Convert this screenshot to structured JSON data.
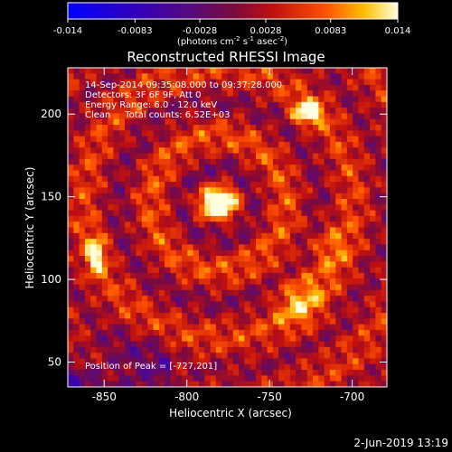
{
  "colorbar": {
    "tick_labels": [
      "-0.014",
      "-0.0083",
      "-0.0028",
      "0.0028",
      "0.0083",
      "0.014"
    ],
    "tick_values": [
      -0.014,
      -0.0083,
      -0.0028,
      0.0028,
      0.0083,
      0.014
    ],
    "range": [
      -0.014,
      0.014
    ],
    "unit_main": "(photons cm",
    "unit_sup1": "-2",
    "unit_mid": " s",
    "unit_sup2": "-1",
    "unit_end": " asec",
    "unit_sup3": "-2",
    "unit_close": ")"
  },
  "info": {
    "line1": "14-Sep-2014 09:35:08.000 to 09:37:28.000",
    "line2": "Detectors: 3F 6F 9F, Att 0",
    "line3": "Energy Range: 6.0 - 12.0 keV",
    "line4": "Clean     Total counts: 6.52E+03",
    "peak": "Position of Peak = [-727,201]"
  },
  "footer": {
    "date": "2-Jun-2019 13:19"
  },
  "colors": {
    "background": "#000000",
    "text": "#ffffff"
  },
  "chart_data": {
    "type": "heatmap",
    "title": "Reconstructed RHESSI Image",
    "xlabel": "Heliocentric X (arcsec)",
    "ylabel": "Heliocentric Y (arcsec)",
    "xlim": [
      -872,
      -679
    ],
    "ylim": [
      35,
      228
    ],
    "xticks": [
      -850,
      -800,
      -750,
      -700
    ],
    "xtick_labels": [
      "-850",
      "-800",
      "-750",
      "-700"
    ],
    "yticks": [
      50,
      100,
      150,
      200
    ],
    "ytick_labels": [
      "50",
      "100",
      "150",
      "200"
    ],
    "peak": [
      -727,
      201
    ],
    "sources": [
      {
        "x": -781,
        "y": 146,
        "intensity": 0.014,
        "sx": 9,
        "sy": 7
      },
      {
        "x": -727,
        "y": 201,
        "intensity": 0.014,
        "sx": 6,
        "sy": 5
      },
      {
        "x": -855,
        "y": 115,
        "intensity": 0.011,
        "sx": 4,
        "sy": 8
      },
      {
        "x": -732,
        "y": 88,
        "intensity": 0.007,
        "sx": 10,
        "sy": 12
      },
      {
        "x": -715,
        "y": 120,
        "intensity": 0.005,
        "sx": 8,
        "sy": 10
      }
    ],
    "colormap": "blue-purple-red-yellow-white"
  }
}
